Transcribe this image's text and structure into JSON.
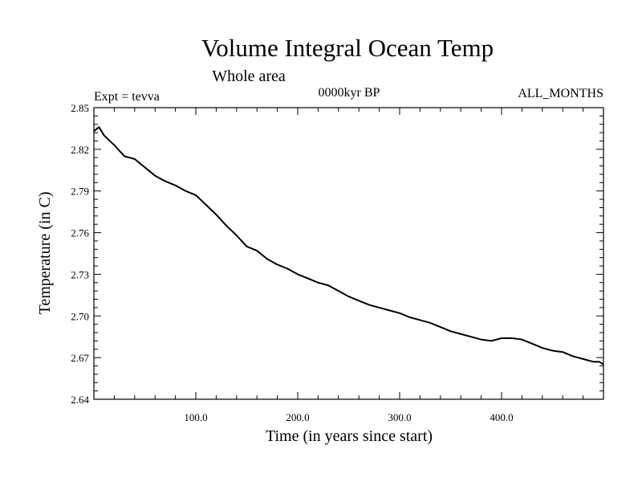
{
  "chart_data": {
    "type": "line",
    "title": "Volume Integral Ocean Temp",
    "subtitle": "Whole area",
    "annotations": {
      "experiment": "Expt = tevva",
      "period": "0000kyr BP",
      "months": "ALL_MONTHS"
    },
    "xlabel": "Time (in years since start)",
    "ylabel": "Temperature (in C)",
    "xlim": [
      0,
      500
    ],
    "ylim": [
      2.64,
      2.85
    ],
    "xticks": [
      "100.0",
      "200.0",
      "300.0",
      "400.0"
    ],
    "yticks": [
      "2.64",
      "2.67",
      "2.70",
      "2.73",
      "2.76",
      "2.79",
      "2.82",
      "2.85"
    ],
    "line_color": "#000000",
    "grid": false,
    "series": [
      {
        "x": [
          0,
          5,
          10,
          20,
          30,
          40,
          50,
          60,
          70,
          80,
          90,
          100,
          110,
          120,
          130,
          140,
          150,
          160,
          170,
          180,
          190,
          200,
          210,
          220,
          230,
          240,
          250,
          260,
          270,
          280,
          290,
          300,
          310,
          320,
          330,
          340,
          350,
          360,
          370,
          380,
          390,
          400,
          410,
          420,
          430,
          440,
          450,
          460,
          470,
          480,
          490,
          496,
          500
        ],
        "y": [
          2.833,
          2.836,
          2.83,
          2.823,
          2.815,
          2.813,
          2.807,
          2.801,
          2.797,
          2.794,
          2.79,
          2.787,
          2.78,
          2.773,
          2.765,
          2.758,
          2.75,
          2.747,
          2.741,
          2.737,
          2.734,
          2.73,
          2.727,
          2.724,
          2.722,
          2.718,
          2.714,
          2.711,
          2.708,
          2.706,
          2.704,
          2.702,
          2.699,
          2.697,
          2.695,
          2.692,
          2.689,
          2.687,
          2.685,
          2.683,
          2.682,
          2.684,
          2.684,
          2.683,
          2.68,
          2.677,
          2.675,
          2.674,
          2.671,
          2.669,
          2.667,
          2.667,
          2.665
        ]
      }
    ]
  }
}
